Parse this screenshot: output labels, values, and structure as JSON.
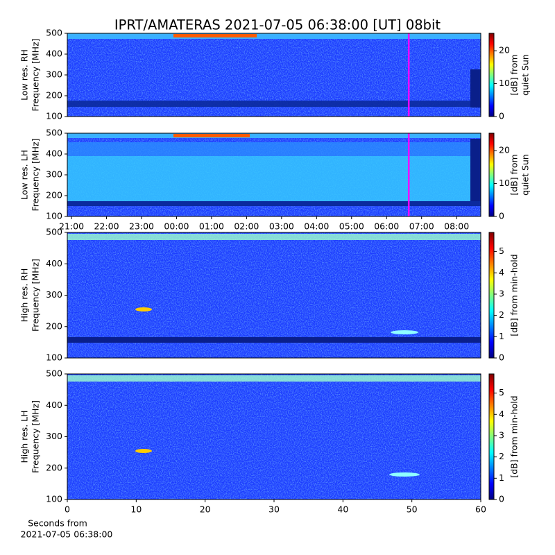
{
  "title": "IPRT/AMATERAS 2021-07-05 06:38:00 [UT]   08bit",
  "chart_data": [
    {
      "type": "heatmap",
      "ylabel": [
        "Low res. RH",
        "Frequency [MHz]"
      ],
      "ylim": [
        100,
        500
      ],
      "yticks": [
        100,
        200,
        300,
        400,
        500
      ],
      "xlim": [
        20.88,
        32.69
      ],
      "marker": 30.633,
      "marker_color": "#ff00ff",
      "clim": [
        0,
        25.3
      ],
      "cticks": [
        0,
        10,
        20
      ],
      "clabel": [
        "[dB] from",
        "quiet Sun"
      ]
    },
    {
      "type": "heatmap",
      "ylabel": [
        "Low res. LH",
        "Frequency [MHz]"
      ],
      "ylim": [
        100,
        500
      ],
      "yticks": [
        100,
        200,
        300,
        400,
        500
      ],
      "xlim": [
        20.88,
        32.69
      ],
      "marker": 30.633,
      "marker_color": "#ff00ff",
      "xticks": [
        {
          "value": 21,
          "label": "21:00"
        },
        {
          "value": 22,
          "label": "22:00"
        },
        {
          "value": 23,
          "label": "23:00"
        },
        {
          "value": 24,
          "label": "00:00"
        },
        {
          "value": 25,
          "label": "01:00"
        },
        {
          "value": 26,
          "label": "02:00"
        },
        {
          "value": 27,
          "label": "03:00"
        },
        {
          "value": 28,
          "label": "04:00"
        },
        {
          "value": 29,
          "label": "05:00"
        },
        {
          "value": 30,
          "label": "06:00"
        },
        {
          "value": 31,
          "label": "07:00"
        },
        {
          "value": 32,
          "label": "08:00"
        }
      ],
      "clim": [
        0,
        25.3
      ],
      "cticks": [
        0,
        10,
        20
      ],
      "clabel": [
        "[dB] from",
        "quiet Sun"
      ]
    },
    {
      "type": "heatmap",
      "ylabel": [
        "High res. RH",
        "Frequency [MHz]"
      ],
      "ylim": [
        100,
        500
      ],
      "yticks": [
        100,
        200,
        300,
        400,
        500
      ],
      "xlim": [
        0,
        60
      ],
      "clim": [
        0,
        5.9
      ],
      "cticks": [
        0,
        1,
        2,
        3,
        4,
        5
      ],
      "clabel": [
        "[dB] from min-hold"
      ]
    },
    {
      "type": "heatmap",
      "ylabel": [
        "High res. LH",
        "Frequency [MHz]"
      ],
      "ylim": [
        100,
        500
      ],
      "yticks": [
        100,
        200,
        300,
        400,
        500
      ],
      "xlim": [
        0,
        60
      ],
      "xticks": [
        0,
        10,
        20,
        30,
        40,
        50,
        60
      ],
      "xlabel": [
        "Seconds from",
        "2021-07-05 06:38:00"
      ],
      "clim": [
        0,
        5.9
      ],
      "cticks": [
        0,
        1,
        2,
        3,
        4,
        5
      ],
      "clabel": [
        "[dB] from min-hold"
      ]
    }
  ]
}
